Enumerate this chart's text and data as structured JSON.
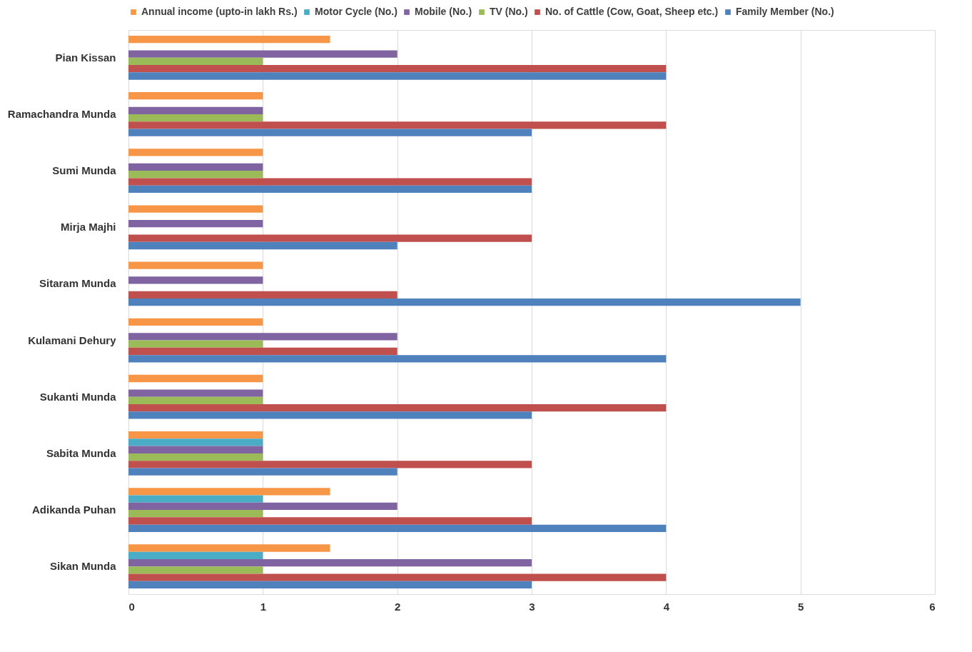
{
  "chart_data": {
    "type": "bar",
    "orientation": "horizontal",
    "categories": [
      "Pian Kissan",
      "Ramachandra Munda",
      "Sumi Munda",
      "Mirja Majhi",
      "Sitaram Munda",
      "Kulamani Dehury",
      "Sukanti Munda",
      "Sabita Munda",
      "Adikanda Puhan",
      "Sikan Munda"
    ],
    "series": [
      {
        "name": "Annual income (upto-in lakh Rs.)",
        "color": "#f79646",
        "values": [
          1.5,
          1,
          1,
          1,
          1,
          1,
          1,
          1,
          1.5,
          1.5
        ]
      },
      {
        "name": "Motor Cycle (No.)",
        "color": "#4bacc6",
        "values": [
          null,
          null,
          null,
          null,
          null,
          null,
          null,
          1,
          1,
          1
        ]
      },
      {
        "name": "Mobile (No.)",
        "color": "#8064a2",
        "values": [
          2,
          1,
          1,
          1,
          1,
          2,
          1,
          1,
          2,
          3
        ]
      },
      {
        "name": "TV (No.)",
        "color": "#9bbb59",
        "values": [
          1,
          1,
          1,
          null,
          null,
          1,
          1,
          1,
          1,
          1
        ]
      },
      {
        "name": "No. of Cattle (Cow, Goat, Sheep etc.)",
        "color": "#c0504d",
        "values": [
          4,
          4,
          3,
          3,
          2,
          2,
          4,
          3,
          3,
          4
        ]
      },
      {
        "name": "Family Member (No.)",
        "color": "#4f81bd",
        "values": [
          4,
          3,
          3,
          2,
          5,
          4,
          3,
          2,
          4,
          3
        ]
      }
    ],
    "xlim": [
      0,
      6
    ],
    "xticks": [
      0,
      1,
      2,
      3,
      4,
      5,
      6
    ],
    "grid": "x",
    "legend": "top"
  }
}
